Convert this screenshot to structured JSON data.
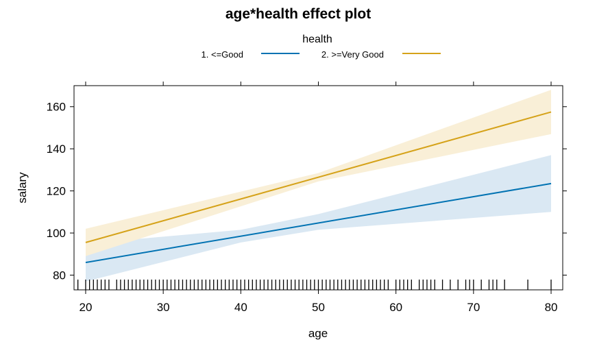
{
  "chart_data": {
    "type": "line",
    "title": "age*health effect plot",
    "xlabel": "age",
    "ylabel": "salary",
    "xlim": [
      18.5,
      81.5
    ],
    "ylim": [
      73,
      170
    ],
    "x_ticks": [
      20,
      30,
      40,
      50,
      60,
      70,
      80
    ],
    "y_ticks": [
      80,
      100,
      120,
      140,
      160
    ],
    "grid": false,
    "legend": {
      "title": "health",
      "placement": "top",
      "entries": [
        "1. <=Good",
        "2. >=Very Good"
      ]
    },
    "x": [
      20,
      80
    ],
    "series": [
      {
        "name": "1. <=Good",
        "color": "#0072B2",
        "band_color": "#DAE8F3",
        "fit": [
          86,
          123.5
        ],
        "lower": [
          77,
          110
        ],
        "upper": [
          95,
          137
        ],
        "band_x": [
          20,
          40,
          50,
          80
        ],
        "band_lower": [
          77,
          95.5,
          101.5,
          110
        ],
        "band_upper": [
          95,
          101.5,
          109,
          137
        ]
      },
      {
        "name": "2. >=Very Good",
        "color": "#D5A219",
        "band_color": "#F9EFD7",
        "fit": [
          95.5,
          157.5
        ],
        "lower": [
          89,
          147
        ],
        "upper": [
          102,
          168
        ],
        "band_x": [
          20,
          50,
          80
        ],
        "band_lower": [
          89,
          124.5,
          147
        ],
        "band_upper": [
          102,
          128.5,
          168
        ]
      }
    ],
    "rug_ages": [
      18.1,
      18.5,
      19,
      20,
      20.5,
      21,
      21.5,
      22,
      22.5,
      23,
      24,
      24.5,
      25,
      25.5,
      26,
      26.5,
      27,
      27.5,
      28,
      28.5,
      29,
      29.5,
      30,
      30.5,
      31,
      31.5,
      32,
      32.5,
      33,
      33.5,
      34,
      34.5,
      35,
      35.5,
      36,
      36.5,
      37,
      37.5,
      38,
      38.5,
      39,
      39.5,
      40,
      40.5,
      41,
      41.5,
      42,
      42.5,
      43,
      43.5,
      44,
      44.5,
      45,
      45.5,
      46,
      46.5,
      47,
      47.5,
      48,
      48.5,
      49,
      49.5,
      50,
      50.5,
      51,
      51.5,
      52,
      52.5,
      53,
      53.5,
      54,
      54.5,
      55,
      55.5,
      56,
      56.5,
      57,
      57.5,
      58,
      58.5,
      59,
      60,
      60.5,
      61,
      61.5,
      62,
      63,
      63.5,
      64,
      64.5,
      65,
      66,
      67,
      68,
      69,
      69.5,
      70,
      71,
      72,
      72.5,
      73,
      74,
      77,
      80
    ]
  }
}
